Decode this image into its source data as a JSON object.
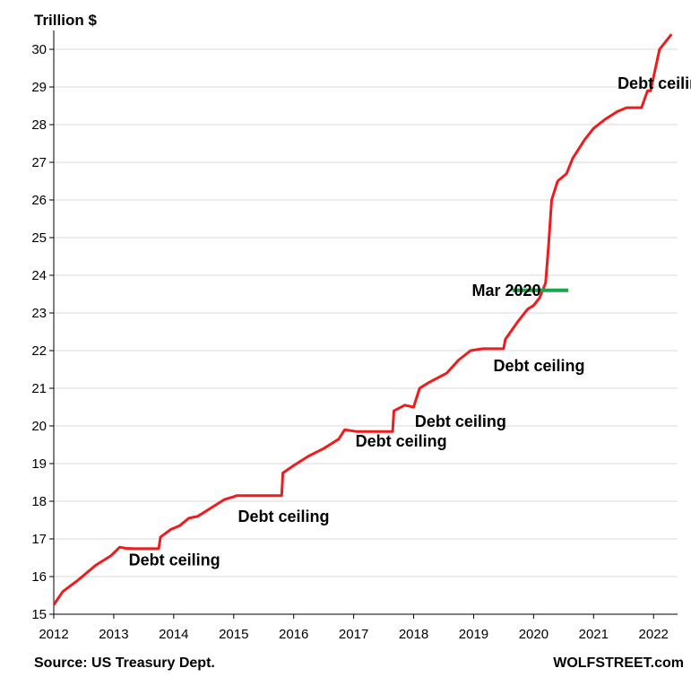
{
  "chart_data": {
    "type": "line",
    "ylabel": "Trillion $",
    "xlabel": "",
    "title": "",
    "xlim": [
      2012,
      2022.4
    ],
    "ylim": [
      15,
      30.5
    ],
    "x_ticks": [
      "2012",
      "2013",
      "2014",
      "2015",
      "2016",
      "2017",
      "2018",
      "2019",
      "2020",
      "2021",
      "2022"
    ],
    "y_ticks": [
      "15",
      "16",
      "17",
      "18",
      "19",
      "20",
      "21",
      "22",
      "23",
      "24",
      "25",
      "26",
      "27",
      "28",
      "29",
      "30"
    ],
    "grid": "horizontal",
    "series": [
      {
        "color": "#ee1c1c",
        "x": [
          2012.0,
          2012.15,
          2012.4,
          2012.7,
          2012.95,
          2013.1,
          2013.2,
          2013.35,
          2013.75,
          2013.78,
          2013.95,
          2014.1,
          2014.25,
          2014.4,
          2014.6,
          2014.85,
          2015.0,
          2015.05,
          2015.8,
          2015.82,
          2016.0,
          2016.25,
          2016.5,
          2016.75,
          2016.85,
          2017.05,
          2017.15,
          2017.65,
          2017.67,
          2017.85,
          2018.0,
          2018.1,
          2018.25,
          2018.55,
          2018.75,
          2018.95,
          2019.15,
          2019.5,
          2019.53,
          2019.75,
          2019.9,
          2020.0,
          2020.1,
          2020.2,
          2020.25,
          2020.3,
          2020.4,
          2020.55,
          2020.65,
          2020.85,
          2021.0,
          2021.2,
          2021.4,
          2021.55,
          2021.6,
          2021.8,
          2021.9,
          2021.95,
          2022.1,
          2022.3
        ],
        "y": [
          15.25,
          15.6,
          15.9,
          16.3,
          16.55,
          16.78,
          16.75,
          16.74,
          16.74,
          17.05,
          17.25,
          17.35,
          17.55,
          17.6,
          17.8,
          18.05,
          18.12,
          18.15,
          18.15,
          18.75,
          18.95,
          19.2,
          19.4,
          19.65,
          19.9,
          19.85,
          19.85,
          19.85,
          20.4,
          20.55,
          20.5,
          21.0,
          21.15,
          21.4,
          21.75,
          22.0,
          22.05,
          22.05,
          22.3,
          22.8,
          23.1,
          23.2,
          23.4,
          23.8,
          24.8,
          26.0,
          26.5,
          26.7,
          27.1,
          27.6,
          27.9,
          28.15,
          28.35,
          28.45,
          28.45,
          28.45,
          28.9,
          28.9,
          30.0,
          30.4
        ]
      }
    ],
    "annotations": [
      {
        "text": "Debt ceiling",
        "x": 2013.25,
        "y": 16.3
      },
      {
        "text": "Debt ceiling",
        "x": 2015.07,
        "y": 17.45
      },
      {
        "text": "Debt ceiling",
        "x": 2017.03,
        "y": 19.45
      },
      {
        "text": "Debt ceiling",
        "x": 2018.02,
        "y": 19.98
      },
      {
        "text": "Debt ceiling",
        "x": 2019.33,
        "y": 21.45
      },
      {
        "text": "Debt ceiling",
        "x": 2021.4,
        "y": 28.95
      },
      {
        "text": "Mar 2020",
        "x": 2018.97,
        "y": 23.45,
        "color": "#1aa64a"
      }
    ],
    "marker": {
      "x_start": 2019.65,
      "x_end": 2020.58,
      "y": 23.6,
      "color": "#1aa64a"
    }
  },
  "footer": {
    "source": "Source: US Treasury Dept.",
    "brand": "WOLFSTREET.com"
  }
}
